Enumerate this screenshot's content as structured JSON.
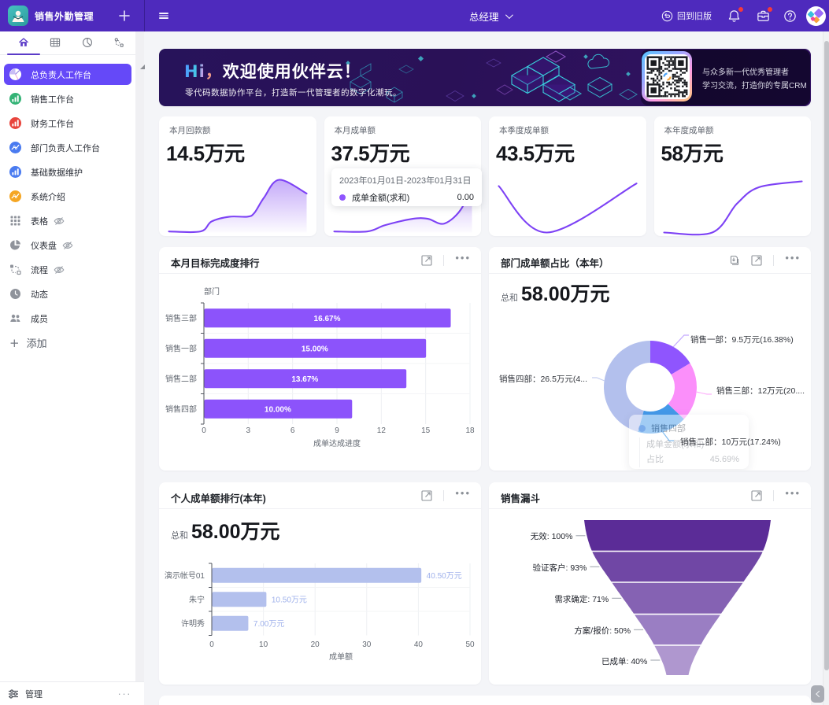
{
  "topbar": {
    "app_title": "销售外勤管理",
    "role_selector": "总经理",
    "back_to_old_label": "回到旧版"
  },
  "sidebar": {
    "tabs": [
      {
        "icon": "home-icon",
        "active": true
      },
      {
        "icon": "table-icon",
        "active": false
      },
      {
        "icon": "clock-icon",
        "active": false
      },
      {
        "icon": "flow-icon",
        "active": false
      }
    ],
    "items": [
      {
        "label": "总负责人工作台",
        "icon": "pie-badge",
        "color": "#ffffff",
        "active": true
      },
      {
        "label": "销售工作台",
        "icon": "bar-badge",
        "color": "#34b376"
      },
      {
        "label": "财务工作台",
        "icon": "bar-badge",
        "color": "#e8443c"
      },
      {
        "label": "部门负责人工作台",
        "icon": "line-badge",
        "color": "#4a7bf0"
      },
      {
        "label": "基础数据维护",
        "icon": "bar-badge",
        "color": "#4a7bf0"
      },
      {
        "label": "系统介绍",
        "icon": "line-badge",
        "color": "#f5a623"
      },
      {
        "label": "表格",
        "icon": "grid-dots",
        "eye": true
      },
      {
        "label": "仪表盘",
        "icon": "pie-grey",
        "eye": true
      },
      {
        "label": "流程",
        "icon": "flow-grey",
        "eye": true
      },
      {
        "label": "动态",
        "icon": "clock-filled",
        "eye": false
      },
      {
        "label": "成员",
        "icon": "people",
        "eye": false
      }
    ],
    "add_label": "添加",
    "footer_label": "管理"
  },
  "banner": {
    "greeting_hi": "Hi",
    "greeting_comma": "，",
    "greeting_rest": "欢迎使用伙伴云！",
    "subtitle": "零代码数据协作平台，打造新一代管理者的数字化潮玩。",
    "qr_caption_line1": "与众多新一代优秀管理者",
    "qr_caption_line2": "学习交流，打造你的专属CRM"
  },
  "stat_cards": [
    {
      "label": "本月回款额",
      "value": "14.5万元",
      "spark_type": "area",
      "spark_points": [
        [
          0,
          0.02
        ],
        [
          0.23,
          0.02
        ],
        [
          0.31,
          0.21
        ],
        [
          0.44,
          0.3
        ],
        [
          0.57,
          0.3
        ],
        [
          0.62,
          0.37
        ],
        [
          0.69,
          0.66
        ],
        [
          0.8,
          1.0
        ],
        [
          1.0,
          0.74
        ]
      ]
    },
    {
      "label": "本月成单额",
      "value": "37.5万元",
      "spark_type": "area",
      "spark_points": [
        [
          0,
          0.02
        ],
        [
          0.24,
          0.02
        ],
        [
          0.37,
          0.14
        ],
        [
          0.57,
          0.26
        ],
        [
          0.68,
          0.26
        ],
        [
          0.8,
          0.17
        ],
        [
          0.93,
          0.48
        ],
        [
          1.0,
          1.05
        ]
      ],
      "tooltip": {
        "date_range": "2023年01月01日-2023年01月31日",
        "series": "成单金额(求和)",
        "value": "0.00"
      }
    },
    {
      "label": "本季度成单额",
      "value": "43.5万元",
      "spark_type": "line",
      "spark_points": [
        [
          0,
          0.88
        ],
        [
          0.35,
          0.0
        ],
        [
          1.0,
          0.93
        ]
      ]
    },
    {
      "label": "本年度成单额",
      "value": "58万元",
      "spark_type": "line",
      "spark_points": [
        [
          0,
          0.0
        ],
        [
          0.35,
          0.0
        ],
        [
          0.53,
          0.55
        ],
        [
          0.69,
          0.86
        ],
        [
          1.0,
          0.97
        ]
      ]
    }
  ],
  "chart_data": [
    {
      "id": "target_rank",
      "type": "bar",
      "orientation": "horizontal",
      "title": "本月目标完成度排行",
      "categories": [
        "销售三部",
        "销售一部",
        "销售二部",
        "销售四部"
      ],
      "values": [
        16.67,
        15.0,
        13.67,
        10.0
      ],
      "value_labels": [
        "16.67%",
        "15.00%",
        "13.67%",
        "10.00%"
      ],
      "xlabel": "成单达成进度",
      "ylabel": "部门",
      "xlim": [
        0,
        18
      ],
      "xticks": [
        0,
        3,
        6,
        9,
        12,
        15,
        18
      ],
      "bar_color": "#8c53fb",
      "grid": true,
      "header_icons": [
        "expand-icon",
        "more-icon"
      ]
    },
    {
      "id": "dept_share",
      "type": "pie",
      "title": "部门成单额占比（本年）",
      "total_label": "总和",
      "total_value": "58.00万元",
      "slices": [
        {
          "name": "销售一部",
          "value": 9.5,
          "pct": 16.38,
          "color": "#8f55fe",
          "label": "销售一部：9.5万元(16.38%)"
        },
        {
          "name": "销售三部",
          "value": 12.0,
          "pct": 20.69,
          "color": "#fb8ffa",
          "label": "销售三部：12万元(20...."
        },
        {
          "name": "销售二部",
          "value": 10.0,
          "pct": 17.24,
          "color": "#4399e9",
          "label": "销售二部：10万元(17.24%)"
        },
        {
          "name": "销售四部",
          "value": 26.5,
          "pct": 45.69,
          "color": "#b3c0ed",
          "label": "销售四部：26.5万元(4..."
        }
      ],
      "tooltip": {
        "title": "销售四部",
        "row1_label": "成单金额(求和)",
        "row1_value": "",
        "row2_label": "占比",
        "row2_value": "45.69%"
      },
      "header_icons": [
        "download-icon",
        "expand-icon",
        "more-icon"
      ]
    },
    {
      "id": "person_rank",
      "type": "bar",
      "orientation": "horizontal",
      "title": "个人成单额排行(本年)",
      "total_label": "总和",
      "total_value": "58.00万元",
      "categories": [
        "演示帐号01",
        "朱宁",
        "许明秀"
      ],
      "values": [
        40.5,
        10.5,
        7.0
      ],
      "value_labels": [
        "40.50万元",
        "10.50万元",
        "7.00万元"
      ],
      "xlabel": "成单额",
      "xlim": [
        0,
        50
      ],
      "xticks": [
        0,
        10,
        20,
        30,
        40,
        50
      ],
      "bar_color": "#b3c0ed",
      "value_label_color": "#9fb1eb",
      "grid": true,
      "header_icons": [
        "expand-icon",
        "more-icon"
      ]
    },
    {
      "id": "sales_funnel",
      "type": "funnel",
      "title": "销售漏斗",
      "stages": [
        {
          "label": "无效: 100%",
          "pct": 100,
          "color": "#5b2c97"
        },
        {
          "label": "验证客户: 93%",
          "pct": 93,
          "color": "#7047a5"
        },
        {
          "label": "需求确定: 71%",
          "pct": 71,
          "color": "#8562b3"
        },
        {
          "label": "方案/报价: 50%",
          "pct": 50,
          "color": "#9a7ec3"
        },
        {
          "label": "已成单: 40%",
          "pct": 40,
          "color": "#af97cf"
        }
      ],
      "header_icons": [
        "expand-icon",
        "more-icon"
      ]
    }
  ],
  "colors": {
    "topbar": "#4e2abd",
    "topbar_left": "#4e2abd",
    "sidebar_active": "#6549f8",
    "accent_purple": "#8c53fb",
    "spark_line": "#7d42f5",
    "main_bg": "#f4f5f8"
  }
}
